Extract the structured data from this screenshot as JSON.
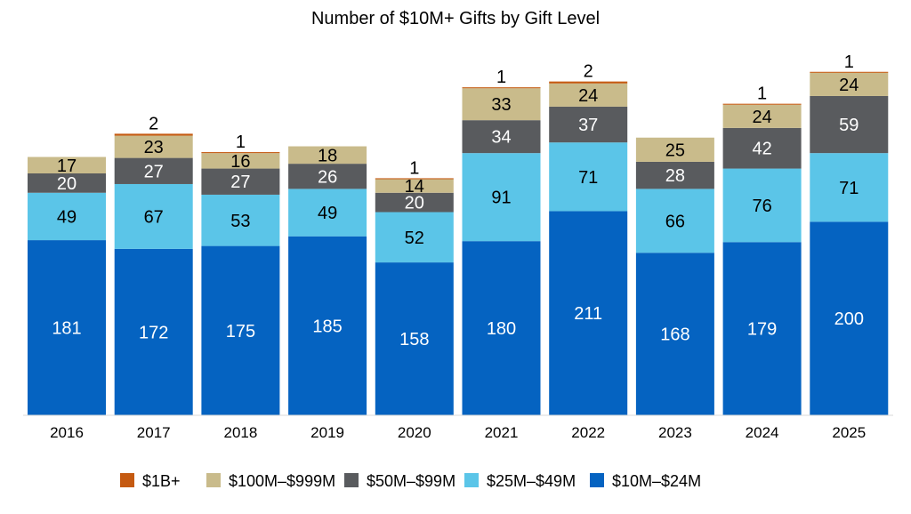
{
  "chart_data": {
    "type": "bar",
    "stacked": true,
    "title": "Number of $10M+ Gifts by Gift Level",
    "xlabel": "",
    "ylabel": "",
    "categories": [
      "2016",
      "2017",
      "2018",
      "2019",
      "2020",
      "2021",
      "2022",
      "2023",
      "2024",
      "2025"
    ],
    "series": [
      {
        "name": "$10M–$24M",
        "color": "#0563C1",
        "label_color": "#ffffff",
        "values": [
          181,
          172,
          175,
          185,
          158,
          180,
          211,
          168,
          179,
          200
        ]
      },
      {
        "name": "$25M–$49M",
        "color": "#5BC5E8",
        "label_color": "#000000",
        "values": [
          49,
          67,
          53,
          49,
          52,
          91,
          71,
          66,
          76,
          71
        ]
      },
      {
        "name": "$50M–$99M",
        "color": "#595B5E",
        "label_color": "#ffffff",
        "values": [
          20,
          27,
          27,
          26,
          20,
          34,
          37,
          28,
          42,
          59
        ]
      },
      {
        "name": "$100M–$999M",
        "color": "#C9BB8B",
        "label_color": "#000000",
        "values": [
          17,
          23,
          16,
          18,
          14,
          33,
          24,
          25,
          24,
          24
        ]
      },
      {
        "name": "$1B+",
        "color": "#C55A11",
        "label_color": "#000000",
        "values": [
          0,
          2,
          1,
          0,
          1,
          1,
          2,
          0,
          1,
          1
        ]
      }
    ],
    "legend_order": [
      "$1B+",
      "$100M–$999M",
      "$50M–$99M",
      "$25M–$49M",
      "$10M–$24M"
    ],
    "legend_position": "bottom",
    "grid": false
  }
}
